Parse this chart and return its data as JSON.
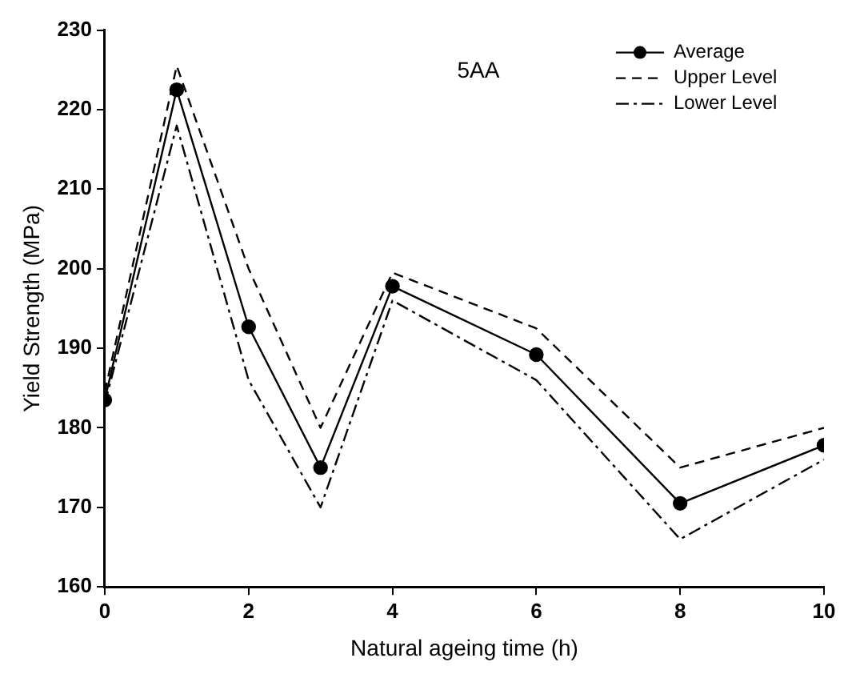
{
  "chart_data": {
    "type": "line",
    "xlabel": "Natural ageing time (h)",
    "ylabel": "Yield Strength (MPa)",
    "annotations": [
      "5AA"
    ],
    "x": [
      0,
      1,
      2,
      3,
      4,
      6,
      8,
      10
    ],
    "series": [
      {
        "name": "Average",
        "color": "#000000",
        "marker": "circle",
        "line_style": "solid",
        "values": [
          183.5,
          222.5,
          192.7,
          175,
          197.8,
          189.2,
          170.5,
          177.8
        ]
      },
      {
        "name": "Upper Level",
        "color": "#000000",
        "marker": "none",
        "line_style": "dashed",
        "values": [
          184.5,
          225.5,
          200,
          180,
          199.5,
          192.5,
          175,
          180
        ]
      },
      {
        "name": "Lower Level",
        "color": "#000000",
        "marker": "none",
        "line_style": "dashdot",
        "values": [
          183,
          218,
          186,
          170,
          196,
          186,
          166,
          176
        ]
      }
    ],
    "xlim": [
      0,
      10
    ],
    "xticks": [
      0,
      2,
      4,
      6,
      8,
      10
    ],
    "ylim": [
      160,
      230
    ],
    "yticks": [
      160,
      170,
      180,
      190,
      200,
      210,
      220,
      230
    ],
    "grid": false,
    "legend": "top right"
  }
}
